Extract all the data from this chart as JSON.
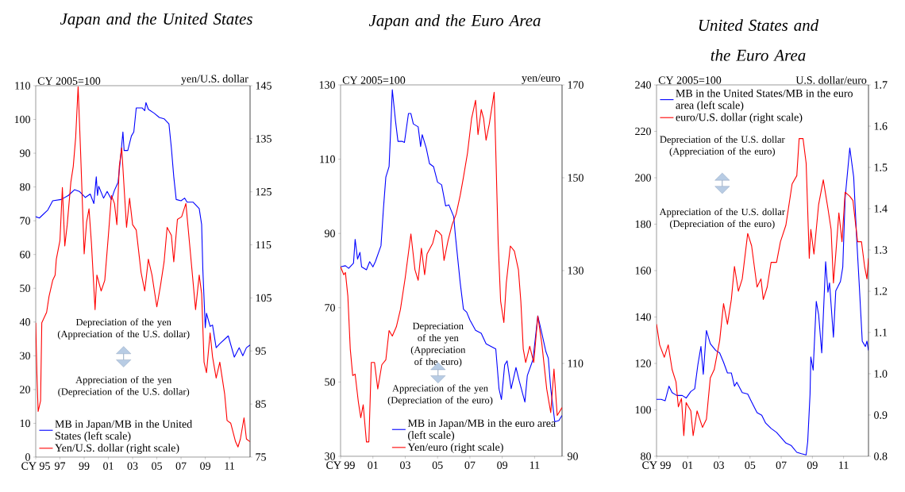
{
  "chart_data": [
    {
      "type": "line",
      "title": "Japan and the United States",
      "ylabel": "CY 2005=100",
      "y2label": "yen/U.S. dollar",
      "xlim": [
        1995,
        2012.7
      ],
      "xticks": [
        {
          "value": 1995,
          "label": "CY 95"
        },
        {
          "value": 1997,
          "label": "97"
        },
        {
          "value": 1999,
          "label": "99"
        },
        {
          "value": 2001,
          "label": "01"
        },
        {
          "value": 2003,
          "label": "03"
        },
        {
          "value": 2005,
          "label": "05"
        },
        {
          "value": 2007,
          "label": "07"
        },
        {
          "value": 2009,
          "label": "09"
        },
        {
          "value": 2011,
          "label": "11"
        }
      ],
      "ylim": [
        0,
        110
      ],
      "yticks": [
        0,
        10,
        20,
        30,
        40,
        50,
        60,
        70,
        80,
        90,
        100,
        110
      ],
      "y2lim": [
        75,
        145
      ],
      "y2ticks": [
        75,
        85,
        95,
        105,
        115,
        125,
        135,
        145
      ],
      "legend": "bottom left",
      "marker": "none",
      "line_style": "solid",
      "annotations": [
        "Depreciation of the yen (Appreciation of the U.S. dollar)",
        "Appreciation of the yen (Depreciation of the U.S. dollar)"
      ],
      "series": [
        {
          "name": "MB in Japan/MB in the United States (left scale)",
          "color": "#0000ff",
          "x": [
            1995,
            1995.3,
            1996,
            1996.4,
            1997.1,
            1997.7,
            1998.2,
            1998.6,
            1999.1,
            1999.5,
            1999.8,
            2000,
            2000.1,
            2000.2,
            2000.6,
            2000.9,
            2001.25,
            2001.5,
            2001.8,
            2002,
            2002.2,
            2002.3,
            2002.6,
            2002.9,
            2003.1,
            2003.3,
            2003.8,
            2004,
            2004.1,
            2004.3,
            2004.8,
            2005.2,
            2005.6,
            2006,
            2006.2,
            2006.4,
            2006.6,
            2007,
            2007.3,
            2007.5,
            2008,
            2008.5,
            2008.7,
            2008.8,
            2009,
            2009.1,
            2009.4,
            2009.6,
            2009.9,
            2010.2,
            2010.9,
            2011.4,
            2011.8,
            2012.1,
            2012.4,
            2012.7
          ],
          "values": [
            71.2,
            70.8,
            73.2,
            75.9,
            76.3,
            77.5,
            79.2,
            78.7,
            76.9,
            77.9,
            75.1,
            83,
            77.5,
            80.2,
            76.7,
            78.7,
            76.3,
            79,
            81.4,
            88.5,
            96.3,
            90.8,
            90.8,
            95.1,
            96.3,
            103.4,
            103.4,
            102.6,
            105,
            103,
            101.8,
            100.6,
            100.2,
            98.7,
            91.6,
            83,
            76.3,
            75.9,
            76.7,
            75.5,
            75.5,
            73.6,
            68.9,
            55.5,
            38.3,
            42.6,
            38.7,
            39.1,
            32.4,
            33.6,
            35.9,
            29.6,
            32.4,
            30,
            32.4,
            33.2
          ]
        },
        {
          "name": "Yen/U.S. dollar (right scale)",
          "color": "#ff0000",
          "axis": "y2",
          "x": [
            1995,
            1995.1,
            1995.2,
            1995.4,
            1995.5,
            1995.9,
            1996.1,
            1996.4,
            1996.6,
            1996.7,
            1997,
            1997.2,
            1997.4,
            1997.6,
            1997.9,
            1998.1,
            1998.3,
            1998.5,
            1998.7,
            1999,
            1999.2,
            1999.4,
            1999.6,
            1999.9,
            2000.05,
            2000.4,
            2000.7,
            2001,
            2001.25,
            2001.5,
            2001.7,
            2001.9,
            2002.1,
            2002.35,
            2002.5,
            2002.75,
            2003,
            2003.3,
            2003.7,
            2004,
            2004.3,
            2004.6,
            2005,
            2005.3,
            2005.6,
            2005.85,
            2006.2,
            2006.4,
            2006.7,
            2007.05,
            2007.4,
            2007.7,
            2008.2,
            2008.5,
            2008.7,
            2008.9,
            2009.1,
            2009.4,
            2009.6,
            2009.9,
            2010.2,
            2010.6,
            2010.8,
            2011.1,
            2011.5,
            2011.7,
            2011.9,
            2012.2,
            2012.4,
            2012.7
          ],
          "values": [
            100.3,
            90.4,
            83.6,
            85.6,
            100.3,
            102.3,
            105.3,
            108.3,
            109.3,
            112.3,
            115.8,
            125.8,
            114.8,
            118.8,
            126.8,
            129.8,
            135.3,
            144.8,
            132.8,
            113.3,
            119.3,
            121.8,
            115.3,
            102.8,
            109.3,
            106.3,
            108.3,
            116.8,
            124.3,
            122.8,
            118.8,
            129.8,
            133.3,
            123.8,
            118.3,
            123.8,
            118.8,
            117.8,
            109.8,
            106.3,
            112.3,
            109.3,
            103.3,
            107.3,
            111.8,
            118.3,
            116.8,
            111.8,
            119.8,
            120.3,
            122.8,
            115.3,
            102.8,
            109.3,
            105.8,
            92.9,
            90.9,
            98.4,
            93.9,
            89.9,
            92.9,
            86.9,
            81.9,
            81.4,
            77.9,
            76.9,
            78.4,
            82.4,
            78.4,
            77.9
          ]
        }
      ]
    },
    {
      "type": "line",
      "title": "Japan and the Euro Area",
      "ylabel": "CY 2005=100",
      "y2label": "yen/euro",
      "xlim": [
        1999,
        2012.7
      ],
      "xticks": [
        {
          "value": 1999,
          "label": "CY 99"
        },
        {
          "value": 2001,
          "label": "01"
        },
        {
          "value": 2003,
          "label": "03"
        },
        {
          "value": 2005,
          "label": "05"
        },
        {
          "value": 2007,
          "label": "07"
        },
        {
          "value": 2009,
          "label": "09"
        },
        {
          "value": 2011,
          "label": "11"
        }
      ],
      "ylim": [
        30,
        130
      ],
      "yticks": [
        30,
        50,
        70,
        90,
        110,
        130
      ],
      "y2lim": [
        90,
        170
      ],
      "y2ticks": [
        90,
        110,
        130,
        150,
        170
      ],
      "legend": "bottom right",
      "marker": "none",
      "line_style": "solid",
      "annotations": [
        "Depreciation of the yen (Appreciation of the euro)",
        "Appreciation of the yen (Depreciation of the euro)"
      ],
      "series": [
        {
          "name": "MB in Japan/MB in the euro area (left scale)",
          "color": "#0000ff",
          "x": [
            1999,
            1999.3,
            1999.5,
            1999.8,
            1999.9,
            2000.05,
            2000.2,
            2000.3,
            2000.6,
            2000.8,
            2001,
            2001.15,
            2001.5,
            2001.65,
            2001.8,
            2002,
            2002.1,
            2002.2,
            2002.4,
            2002.55,
            2002.8,
            2002.95,
            2003.2,
            2003.35,
            2003.5,
            2003.8,
            2003.95,
            2004.05,
            2004.3,
            2004.5,
            2004.75,
            2005,
            2005.25,
            2005.5,
            2005.7,
            2006,
            2006.1,
            2006.4,
            2006.6,
            2006.8,
            2007,
            2007.35,
            2007.7,
            2008,
            2008.3,
            2008.6,
            2008.8,
            2008.95,
            2009.15,
            2009.3,
            2009.55,
            2009.85,
            2010.05,
            2010.4,
            2010.55,
            2010.9,
            2011.2,
            2011.45,
            2011.7,
            2011.85,
            2012,
            2012.25,
            2012.5,
            2012.7
          ],
          "values": [
            81,
            81.3,
            80.6,
            82,
            88.4,
            83.1,
            84.9,
            81,
            80.2,
            82.4,
            81,
            82.4,
            86.7,
            96.6,
            105.2,
            108,
            118,
            128.7,
            120.2,
            114.8,
            114.8,
            114.5,
            122.3,
            122.3,
            119.5,
            118.7,
            113.4,
            116.6,
            113,
            108.8,
            108,
            103.8,
            103.1,
            97.4,
            97.7,
            94.5,
            89.5,
            76.7,
            69.6,
            68.8,
            66.7,
            63.9,
            63.1,
            60.3,
            59.6,
            58.9,
            48.2,
            45.3,
            54.6,
            55.7,
            48.2,
            53.9,
            50.3,
            44.6,
            51.7,
            56,
            67.8,
            63.1,
            58.2,
            56.4,
            48.2,
            39.3,
            39.6,
            41
          ]
        },
        {
          "name": "Yen/euro (right scale)",
          "color": "#ff0000",
          "axis": "y2",
          "x": [
            1999,
            1999.2,
            1999.3,
            1999.45,
            1999.6,
            1999.75,
            1999.9,
            2000.1,
            2000.25,
            2000.4,
            2000.6,
            2000.75,
            2000.9,
            2001.1,
            2001.3,
            2001.55,
            2001.8,
            2002,
            2002.2,
            2002.45,
            2002.7,
            2003,
            2003.35,
            2003.6,
            2003.8,
            2004,
            2004.2,
            2004.35,
            2004.7,
            2004.9,
            2005.1,
            2005.25,
            2005.4,
            2005.65,
            2005.9,
            2006.15,
            2006.4,
            2006.6,
            2006.85,
            2007.1,
            2007.35,
            2007.5,
            2007.7,
            2007.85,
            2008,
            2008.2,
            2008.5,
            2008.6,
            2008.75,
            2008.9,
            2009.1,
            2009.25,
            2009.5,
            2009.75,
            2010,
            2010.15,
            2010.3,
            2010.45,
            2010.7,
            2010.95,
            2011.2,
            2011.45,
            2011.75,
            2012,
            2012.2,
            2012.4,
            2012.7
          ],
          "values": [
            130.8,
            129.1,
            129.6,
            124.5,
            113.1,
            107.4,
            107.7,
            101.7,
            98.3,
            101.1,
            93.1,
            93.1,
            110.2,
            110.2,
            104.5,
            109.7,
            110.8,
            117.1,
            115.9,
            117.9,
            121.6,
            128.5,
            137.9,
            130.2,
            127.9,
            134.8,
            129.1,
            133.6,
            135.9,
            138.7,
            138.2,
            137.6,
            132.2,
            136.5,
            139.9,
            142.2,
            146.2,
            150.1,
            155.3,
            162.7,
            166.7,
            159.3,
            164.7,
            162.7,
            158.1,
            161.6,
            168.4,
            155.8,
            135.9,
            123.4,
            118.8,
            127.3,
            135.3,
            134.2,
            130.2,
            123.4,
            113.1,
            110.2,
            113.7,
            110.2,
            120.2,
            114.2,
            104.5,
            99.4,
            108.8,
            98.8,
            100.5
          ]
        }
      ]
    },
    {
      "type": "line",
      "title": "United States and the Euro Area",
      "ylabel": "CY 2005=100",
      "y2label": "U.S. dollar/euro",
      "xlim": [
        1999,
        2012.6
      ],
      "xticks": [
        {
          "value": 1999,
          "label": "CY 99"
        },
        {
          "value": 2001,
          "label": "01"
        },
        {
          "value": 2003,
          "label": "03"
        },
        {
          "value": 2005,
          "label": "05"
        },
        {
          "value": 2007,
          "label": "07"
        },
        {
          "value": 2009,
          "label": "09"
        },
        {
          "value": 2011,
          "label": "11"
        }
      ],
      "ylim": [
        80,
        240
      ],
      "yticks": [
        80,
        100,
        120,
        140,
        160,
        180,
        200,
        220,
        240
      ],
      "y2lim": [
        0.8,
        1.7
      ],
      "y2ticks": [
        0.8,
        0.9,
        {
          "value": 1,
          "label": "1.0"
        },
        1.1,
        1.2,
        1.3,
        1.4,
        1.5,
        1.6,
        1.7
      ],
      "legend": "top left",
      "marker": "none",
      "line_style": "solid",
      "annotations": [
        "Depreciation of the U.S. dollar (Appreciation of the euro)",
        "Appreciation of the U.S. dollar (Depreciation of the euro)"
      ],
      "series": [
        {
          "name": "MB in the United States/MB in the euro area (left scale)",
          "color": "#0000ff",
          "x": [
            1999,
            1999.3,
            1999.55,
            1999.8,
            2000,
            2000.3,
            2000.65,
            2000.9,
            2001.2,
            2001.45,
            2001.65,
            2001.85,
            2002,
            2002.2,
            2002.45,
            2002.8,
            2003.05,
            2003.3,
            2003.55,
            2003.8,
            2004,
            2004.15,
            2004.5,
            2004.85,
            2005.1,
            2005.45,
            2005.75,
            2006,
            2006.35,
            2006.7,
            2007,
            2007.3,
            2007.65,
            2008,
            2008.3,
            2008.6,
            2008.7,
            2008.85,
            2008.9,
            2009.05,
            2009.25,
            2009.4,
            2009.6,
            2009.85,
            2010,
            2010.1,
            2010.35,
            2010.5,
            2010.8,
            2010.95,
            2011.1,
            2011.4,
            2011.65,
            2011.85,
            2012,
            2012.2,
            2012.4,
            2012.5,
            2012.6
          ],
          "values": [
            104.5,
            104.5,
            103.9,
            110.2,
            107.4,
            106.2,
            106.2,
            105.1,
            107.9,
            109.1,
            119.3,
            127.3,
            115.3,
            134.2,
            128.5,
            125.6,
            124.5,
            120.5,
            115.9,
            115.9,
            110.2,
            111.9,
            107.4,
            106.8,
            103.4,
            98.8,
            97.7,
            94.3,
            92,
            90.3,
            88,
            85.7,
            84.6,
            81.7,
            81.1,
            80.6,
            86.3,
            106.8,
            122.8,
            117.1,
            146.7,
            141,
            124.5,
            163.8,
            150.7,
            154.7,
            131.3,
            151.3,
            155.3,
            161.5,
            191.2,
            212.8,
            200.3,
            172.9,
            154.7,
            129.6,
            127.3,
            129.6,
            125.6
          ]
        },
        {
          "name": "euro/U.S. dollar (right scale)",
          "color": "#ff0000",
          "axis": "y2",
          "x": [
            1999,
            1999.2,
            1999.5,
            1999.75,
            2000,
            2000.25,
            2000.4,
            2000.6,
            2000.75,
            2000.9,
            2001.2,
            2001.35,
            2001.6,
            2001.95,
            2002.2,
            2002.45,
            2002.7,
            2003.05,
            2003.3,
            2003.55,
            2003.8,
            2004,
            2004.25,
            2004.5,
            2004.85,
            2005.1,
            2005.45,
            2005.7,
            2005.85,
            2006.1,
            2006.35,
            2006.7,
            2006.95,
            2007.3,
            2007.7,
            2008,
            2008.15,
            2008.4,
            2008.6,
            2008.8,
            2008.9,
            2009.1,
            2009.4,
            2009.7,
            2010,
            2010.2,
            2010.35,
            2010.5,
            2010.7,
            2010.9,
            2011.1,
            2011.4,
            2011.6,
            2011.9,
            2012.15,
            2012.35,
            2012.5,
            2012.6
          ],
          "values": [
            1.12,
            1.07,
            1.04,
            1.07,
            1.01,
            0.98,
            0.92,
            0.94,
            0.85,
            0.93,
            0.91,
            0.85,
            0.91,
            0.87,
            0.89,
            0.99,
            1.01,
            1.08,
            1.17,
            1.12,
            1.18,
            1.26,
            1.2,
            1.23,
            1.34,
            1.31,
            1.21,
            1.23,
            1.18,
            1.21,
            1.27,
            1.27,
            1.32,
            1.36,
            1.46,
            1.48,
            1.57,
            1.57,
            1.51,
            1.28,
            1.35,
            1.29,
            1.41,
            1.47,
            1.4,
            1.35,
            1.22,
            1.29,
            1.39,
            1.32,
            1.44,
            1.43,
            1.42,
            1.32,
            1.32,
            1.26,
            1.23,
            1.28
          ]
        }
      ]
    }
  ]
}
